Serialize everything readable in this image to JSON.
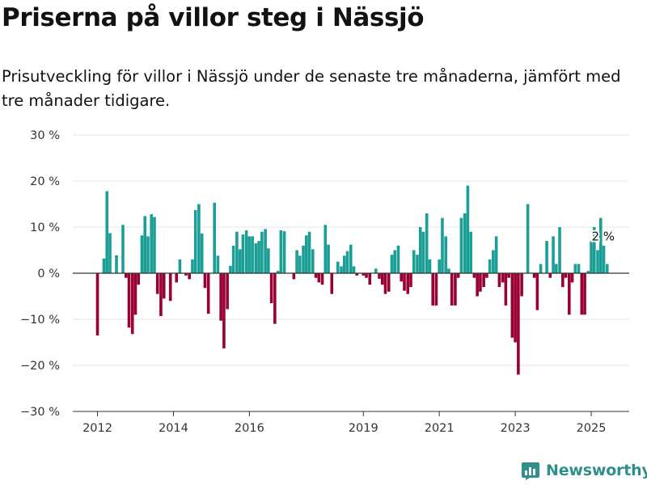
{
  "chart_data": {
    "type": "bar",
    "title": "Priserna på villor steg i Nässjö",
    "subtitle": "Prisutveckling för villor i Nässjö under de senaste tre månaderna, jämfört med tre månader tidigare.",
    "unit": "%",
    "ylim": [
      -30,
      30
    ],
    "y_ticks": [
      {
        "value": 30,
        "label": "30 %"
      },
      {
        "value": 20,
        "label": "20 %"
      },
      {
        "value": 10,
        "label": "10 %"
      },
      {
        "value": 0,
        "label": "0 %"
      },
      {
        "value": -10,
        "label": "−10 %"
      },
      {
        "value": -20,
        "label": "−20 %"
      },
      {
        "value": -30,
        "label": "−30 %"
      }
    ],
    "x_ticks": [
      {
        "year": 2012,
        "label": "2012"
      },
      {
        "year": 2014,
        "label": "2014"
      },
      {
        "year": 2016,
        "label": "2016"
      },
      {
        "year": 2019,
        "label": "2019"
      },
      {
        "year": 2021,
        "label": "2021"
      },
      {
        "year": 2023,
        "label": "2023"
      },
      {
        "year": 2025,
        "label": "2025"
      }
    ],
    "x_range": [
      2011.35,
      2026.0
    ],
    "grid": true,
    "colors": {
      "positive": "#1a9e96",
      "negative": "#990033",
      "grid": "#e4e4e4",
      "zero_line": "#333333"
    },
    "annotation": {
      "label": "2 %",
      "x": 2025.25,
      "y": 2
    },
    "series": [
      {
        "values": [
          {
            "x": 2012.0,
            "y": -13.5
          },
          {
            "x": 2012.17,
            "y": 3.2
          },
          {
            "x": 2012.25,
            "y": 17.8
          },
          {
            "x": 2012.33,
            "y": 8.7
          },
          {
            "x": 2012.5,
            "y": 3.9
          },
          {
            "x": 2012.67,
            "y": 10.5
          },
          {
            "x": 2012.75,
            "y": -1.0
          },
          {
            "x": 2012.83,
            "y": -11.8
          },
          {
            "x": 2012.92,
            "y": -13.2
          },
          {
            "x": 2013.0,
            "y": -9.0
          },
          {
            "x": 2013.08,
            "y": -2.5
          },
          {
            "x": 2013.17,
            "y": 8.2
          },
          {
            "x": 2013.25,
            "y": 12.4
          },
          {
            "x": 2013.33,
            "y": 8.0
          },
          {
            "x": 2013.42,
            "y": 12.8
          },
          {
            "x": 2013.5,
            "y": 12.2
          },
          {
            "x": 2013.58,
            "y": -4.5
          },
          {
            "x": 2013.67,
            "y": -9.3
          },
          {
            "x": 2013.75,
            "y": -5.5
          },
          {
            "x": 2013.92,
            "y": -6.0
          },
          {
            "x": 2014.08,
            "y": -2.0
          },
          {
            "x": 2014.17,
            "y": 3.0
          },
          {
            "x": 2014.33,
            "y": -0.5
          },
          {
            "x": 2014.42,
            "y": -1.3
          },
          {
            "x": 2014.5,
            "y": 3.0
          },
          {
            "x": 2014.58,
            "y": 13.7
          },
          {
            "x": 2014.67,
            "y": 15.0
          },
          {
            "x": 2014.75,
            "y": 8.6
          },
          {
            "x": 2014.83,
            "y": -3.2
          },
          {
            "x": 2014.92,
            "y": -8.8
          },
          {
            "x": 2015.08,
            "y": 15.3
          },
          {
            "x": 2015.17,
            "y": 3.8
          },
          {
            "x": 2015.25,
            "y": -10.3
          },
          {
            "x": 2015.33,
            "y": -16.3
          },
          {
            "x": 2015.42,
            "y": -7.8
          },
          {
            "x": 2015.5,
            "y": 1.6
          },
          {
            "x": 2015.58,
            "y": 6.0
          },
          {
            "x": 2015.67,
            "y": 9.0
          },
          {
            "x": 2015.75,
            "y": 5.2
          },
          {
            "x": 2015.83,
            "y": 8.4
          },
          {
            "x": 2015.92,
            "y": 9.3
          },
          {
            "x": 2016.0,
            "y": 8.0
          },
          {
            "x": 2016.08,
            "y": 8.0
          },
          {
            "x": 2016.17,
            "y": 6.5
          },
          {
            "x": 2016.25,
            "y": 7.0
          },
          {
            "x": 2016.33,
            "y": 9.0
          },
          {
            "x": 2016.42,
            "y": 9.6
          },
          {
            "x": 2016.5,
            "y": 5.4
          },
          {
            "x": 2016.58,
            "y": -6.5
          },
          {
            "x": 2016.67,
            "y": -11.0
          },
          {
            "x": 2016.75,
            "y": 0.5
          },
          {
            "x": 2016.83,
            "y": 9.3
          },
          {
            "x": 2016.92,
            "y": 9.1
          },
          {
            "x": 2017.17,
            "y": -1.3
          },
          {
            "x": 2017.25,
            "y": 5.0
          },
          {
            "x": 2017.33,
            "y": 3.8
          },
          {
            "x": 2017.42,
            "y": 6.0
          },
          {
            "x": 2017.5,
            "y": 8.2
          },
          {
            "x": 2017.58,
            "y": 9.0
          },
          {
            "x": 2017.67,
            "y": 5.2
          },
          {
            "x": 2017.75,
            "y": -1.0
          },
          {
            "x": 2017.83,
            "y": -2.0
          },
          {
            "x": 2017.92,
            "y": -2.5
          },
          {
            "x": 2018.0,
            "y": 10.5
          },
          {
            "x": 2018.08,
            "y": 6.2
          },
          {
            "x": 2018.17,
            "y": -4.5
          },
          {
            "x": 2018.33,
            "y": 2.5
          },
          {
            "x": 2018.42,
            "y": 1.5
          },
          {
            "x": 2018.5,
            "y": 3.8
          },
          {
            "x": 2018.58,
            "y": 4.8
          },
          {
            "x": 2018.67,
            "y": 6.2
          },
          {
            "x": 2018.75,
            "y": 1.5
          },
          {
            "x": 2018.83,
            "y": -0.5
          },
          {
            "x": 2019.0,
            "y": -0.5
          },
          {
            "x": 2019.08,
            "y": -1.0
          },
          {
            "x": 2019.17,
            "y": -2.5
          },
          {
            "x": 2019.33,
            "y": 1.0
          },
          {
            "x": 2019.42,
            "y": -1.2
          },
          {
            "x": 2019.5,
            "y": -2.5
          },
          {
            "x": 2019.58,
            "y": -4.5
          },
          {
            "x": 2019.67,
            "y": -4.0
          },
          {
            "x": 2019.75,
            "y": 4.0
          },
          {
            "x": 2019.83,
            "y": 5.0
          },
          {
            "x": 2019.92,
            "y": 6.0
          },
          {
            "x": 2020.0,
            "y": -1.8
          },
          {
            "x": 2020.08,
            "y": -3.8
          },
          {
            "x": 2020.17,
            "y": -4.5
          },
          {
            "x": 2020.25,
            "y": -3.0
          },
          {
            "x": 2020.33,
            "y": 5.0
          },
          {
            "x": 2020.42,
            "y": 4.0
          },
          {
            "x": 2020.5,
            "y": 10.0
          },
          {
            "x": 2020.58,
            "y": 9.0
          },
          {
            "x": 2020.67,
            "y": 13.0
          },
          {
            "x": 2020.75,
            "y": 3.0
          },
          {
            "x": 2020.83,
            "y": -7.0
          },
          {
            "x": 2020.92,
            "y": -7.0
          },
          {
            "x": 2021.0,
            "y": 3.0
          },
          {
            "x": 2021.08,
            "y": 12.0
          },
          {
            "x": 2021.17,
            "y": 8.0
          },
          {
            "x": 2021.25,
            "y": 1.0
          },
          {
            "x": 2021.33,
            "y": -7.0
          },
          {
            "x": 2021.42,
            "y": -7.0
          },
          {
            "x": 2021.5,
            "y": -1.0
          },
          {
            "x": 2021.58,
            "y": 12.0
          },
          {
            "x": 2021.67,
            "y": 13.0
          },
          {
            "x": 2021.75,
            "y": 19.0
          },
          {
            "x": 2021.83,
            "y": 9.0
          },
          {
            "x": 2021.92,
            "y": -1.0
          },
          {
            "x": 2022.0,
            "y": -5.0
          },
          {
            "x": 2022.08,
            "y": -4.0
          },
          {
            "x": 2022.17,
            "y": -3.0
          },
          {
            "x": 2022.25,
            "y": -1.0
          },
          {
            "x": 2022.33,
            "y": 3.0
          },
          {
            "x": 2022.42,
            "y": 5.0
          },
          {
            "x": 2022.5,
            "y": 8.0
          },
          {
            "x": 2022.58,
            "y": -3.0
          },
          {
            "x": 2022.67,
            "y": -2.0
          },
          {
            "x": 2022.75,
            "y": -7.0
          },
          {
            "x": 2022.83,
            "y": -1.0
          },
          {
            "x": 2022.92,
            "y": -14.0
          },
          {
            "x": 2023.0,
            "y": -15.0
          },
          {
            "x": 2023.08,
            "y": -22.0
          },
          {
            "x": 2023.17,
            "y": -5.0
          },
          {
            "x": 2023.33,
            "y": 15.0
          },
          {
            "x": 2023.5,
            "y": -1.0
          },
          {
            "x": 2023.58,
            "y": -8.0
          },
          {
            "x": 2023.67,
            "y": 2.0
          },
          {
            "x": 2023.83,
            "y": 7.0
          },
          {
            "x": 2023.92,
            "y": -1.0
          },
          {
            "x": 2024.0,
            "y": 8.0
          },
          {
            "x": 2024.08,
            "y": 2.0
          },
          {
            "x": 2024.17,
            "y": 10.0
          },
          {
            "x": 2024.25,
            "y": -3.0
          },
          {
            "x": 2024.33,
            "y": -1.0
          },
          {
            "x": 2024.42,
            "y": -9.0
          },
          {
            "x": 2024.5,
            "y": -2.0
          },
          {
            "x": 2024.58,
            "y": 2.0
          },
          {
            "x": 2024.67,
            "y": 2.0
          },
          {
            "x": 2024.75,
            "y": -9.0
          },
          {
            "x": 2024.83,
            "y": -9.0
          },
          {
            "x": 2024.92,
            "y": 0.5
          },
          {
            "x": 2025.0,
            "y": 7.0
          },
          {
            "x": 2025.08,
            "y": 10.0
          },
          {
            "x": 2025.17,
            "y": 5.0
          },
          {
            "x": 2025.25,
            "y": 12.0
          },
          {
            "x": 2025.33,
            "y": 6.0
          },
          {
            "x": 2025.42,
            "y": 2.0
          }
        ]
      }
    ]
  },
  "logo": {
    "text": "Newsworthy",
    "icon": "newsworthy-bar-chart-icon",
    "color": "#2f8f8a"
  }
}
